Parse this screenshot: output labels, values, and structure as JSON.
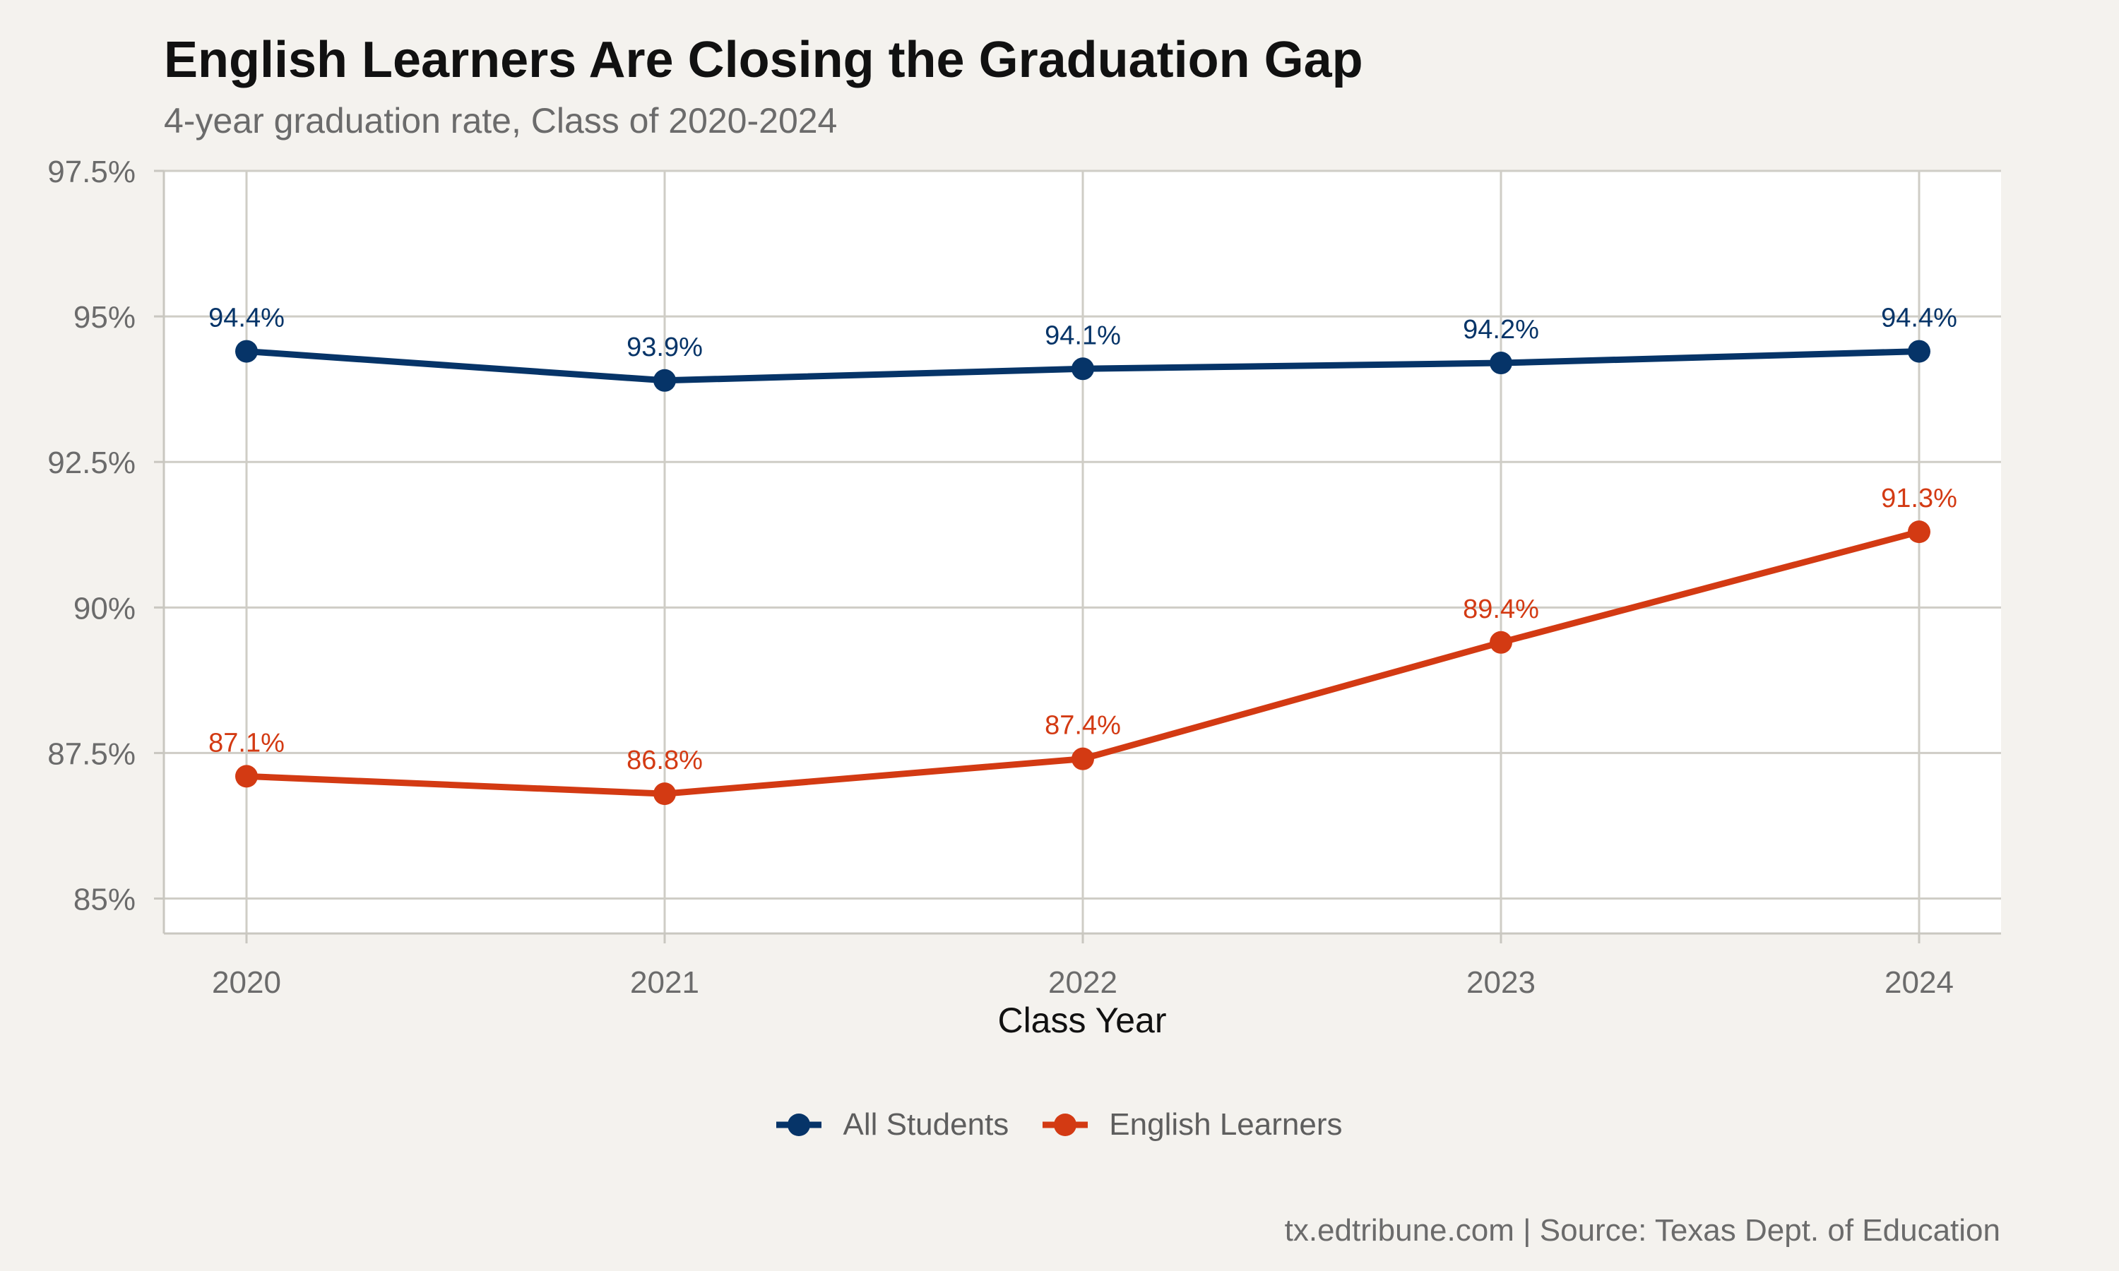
{
  "title": "English Learners Are Closing the Graduation Gap",
  "subtitle": "4-year graduation rate, Class of 2020-2024",
  "caption": "tx.edtribune.com | Source: Texas Dept. of Education",
  "colors": {
    "all_students": "#063468",
    "english_learners": "#d33a13",
    "panel": "#ffffff",
    "grid": "#cfcdc6",
    "background": "#f4f2ee"
  },
  "chart_data": {
    "type": "line",
    "title": "English Learners Are Closing the Graduation Gap",
    "subtitle": "4-year graduation rate, Class of 2020-2024",
    "xlabel": "Class Year",
    "ylabel": "",
    "categories": [
      "2020",
      "2021",
      "2022",
      "2023",
      "2024"
    ],
    "ylim": [
      84.4,
      97.5
    ],
    "yticks": [
      85,
      87.5,
      90,
      92.5,
      95,
      97.5
    ],
    "ytick_labels": [
      "85%",
      "87.5%",
      "90%",
      "92.5%",
      "95%",
      "97.5%"
    ],
    "grid": true,
    "legend_position": "bottom",
    "series": [
      {
        "name": "All Students",
        "color": "#063468",
        "values": [
          94.4,
          93.9,
          94.1,
          94.2,
          94.4
        ],
        "labels": [
          "94.4%",
          "93.9%",
          "94.1%",
          "94.2%",
          "94.4%"
        ]
      },
      {
        "name": "English Learners",
        "color": "#d33a13",
        "values": [
          87.1,
          86.8,
          87.4,
          89.4,
          91.3
        ],
        "labels": [
          "87.1%",
          "86.8%",
          "87.4%",
          "89.4%",
          "91.3%"
        ]
      }
    ]
  }
}
